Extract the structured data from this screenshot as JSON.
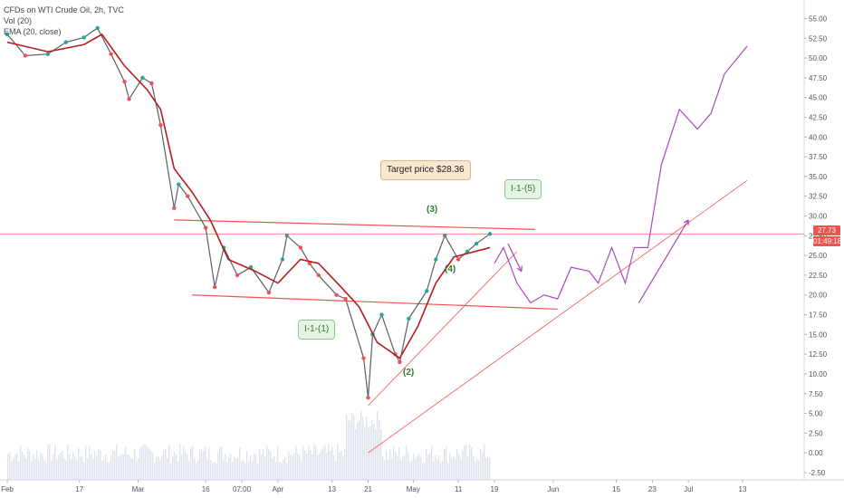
{
  "header": {
    "symbol_line": "CFDs on WTI Crude Oil, 2h, TVC",
    "vol_line": "Vol (20)",
    "ma_line": "EMA (20, close)"
  },
  "last_price": {
    "value": "27.73",
    "countdown": "01:49:18",
    "color": "#ef5350"
  },
  "annotations": {
    "target": "Target price $28.36",
    "wave_i1_1": "I-1-(1)",
    "wave_i1_5": "I-1-(5)",
    "w2": "(2)",
    "w3": "(3)",
    "w4": "(4)"
  },
  "colors": {
    "candle_up": "#26a69a",
    "candle_down": "#ef5350",
    "ema": "#b71c1c",
    "trendline": "#ef5350",
    "projection": "#ab47bc",
    "volume": "#e0e3eb"
  },
  "chart_data": {
    "type": "line",
    "title": "CFDs on WTI Crude Oil, 2h, TVC",
    "x_ticks": [
      "Feb",
      "17",
      "Mar",
      "16",
      "07:00",
      "Apr",
      "13",
      "21",
      "May",
      "11",
      "19",
      "Jun",
      "15",
      "23",
      "Jul",
      "13"
    ],
    "y_ticks": [
      "55.00",
      "52.50",
      "50.00",
      "47.50",
      "45.00",
      "42.50",
      "40.00",
      "37.50",
      "35.00",
      "32.50",
      "30.00",
      "27.50",
      "25.00",
      "22.50",
      "20.00",
      "17.50",
      "15.00",
      "12.50",
      "10.00",
      "7.50",
      "5.00",
      "2.50",
      "0.00",
      "-2.50"
    ],
    "ylim": [
      -2.5,
      56.2
    ],
    "price_series": {
      "name": "Close",
      "points": [
        [
          "Feb 01",
          53.0
        ],
        [
          "Feb 05",
          50.3
        ],
        [
          "Feb 10",
          50.5
        ],
        [
          "Feb 14",
          52.0
        ],
        [
          "Feb 18",
          52.6
        ],
        [
          "Feb 21",
          53.8
        ],
        [
          "Feb 24",
          50.5
        ],
        [
          "Feb 27",
          47.0
        ],
        [
          "Feb 28",
          44.8
        ],
        [
          "Mar 02",
          47.5
        ],
        [
          "Mar 04",
          46.8
        ],
        [
          "Mar 06",
          41.5
        ],
        [
          "Mar 09",
          31.0
        ],
        [
          "Mar 10",
          34.0
        ],
        [
          "Mar 12",
          32.5
        ],
        [
          "Mar 16",
          28.5
        ],
        [
          "Mar 18",
          21.0
        ],
        [
          "Mar 20",
          26.0
        ],
        [
          "Mar 23",
          22.5
        ],
        [
          "Mar 26",
          23.5
        ],
        [
          "Mar 30",
          20.3
        ],
        [
          "Apr 02",
          24.5
        ],
        [
          "Apr 03",
          27.5
        ],
        [
          "Apr 06",
          26.0
        ],
        [
          "Apr 08",
          24.0
        ],
        [
          "Apr 10",
          22.5
        ],
        [
          "Apr 14",
          20.0
        ],
        [
          "Apr 16",
          19.5
        ],
        [
          "Apr 20",
          12.0
        ],
        [
          "Apr 21",
          7.0
        ],
        [
          "Apr 22",
          15.0
        ],
        [
          "Apr 24",
          17.5
        ],
        [
          "Apr 27",
          12.5
        ],
        [
          "Apr 28",
          11.5
        ],
        [
          "Apr 30",
          17.0
        ],
        [
          "May 04",
          20.5
        ],
        [
          "May 06",
          24.5
        ],
        [
          "May 08",
          27.5
        ],
        [
          "May 11",
          24.5
        ],
        [
          "May 13",
          25.5
        ],
        [
          "May 15",
          26.5
        ],
        [
          "May 18",
          27.73
        ]
      ]
    },
    "ema_series": {
      "name": "EMA (20, close)",
      "points": [
        [
          "Feb 01",
          52.0
        ],
        [
          "Feb 10",
          50.8
        ],
        [
          "Feb 18",
          51.7
        ],
        [
          "Feb 22",
          53.0
        ],
        [
          "Feb 27",
          49.0
        ],
        [
          "Mar 03",
          46.0
        ],
        [
          "Mar 06",
          43.5
        ],
        [
          "Mar 09",
          36.0
        ],
        [
          "Mar 13",
          33.0
        ],
        [
          "Mar 17",
          29.5
        ],
        [
          "Mar 21",
          24.5
        ],
        [
          "Mar 27",
          23.0
        ],
        [
          "Apr 01",
          21.5
        ],
        [
          "Apr 06",
          24.5
        ],
        [
          "Apr 10",
          24.0
        ],
        [
          "Apr 15",
          21.0
        ],
        [
          "Apr 19",
          18.5
        ],
        [
          "Apr 23",
          14.0
        ],
        [
          "Apr 28",
          12.0
        ],
        [
          "May 02",
          16.0
        ],
        [
          "May 06",
          21.5
        ],
        [
          "May 10",
          24.8
        ],
        [
          "May 18",
          26.0
        ]
      ]
    },
    "trendlines": [
      {
        "name": "upper",
        "from": [
          "Mar 09",
          29.5
        ],
        "to": [
          "May 28",
          28.3
        ]
      },
      {
        "name": "lower",
        "from": [
          "Mar 13",
          20.0
        ],
        "to": [
          "Jun 02",
          18.2
        ]
      },
      {
        "name": "support1",
        "from": [
          "Apr 21",
          6.0
        ],
        "to": [
          "May 24",
          25.5
        ]
      },
      {
        "name": "support2",
        "from": [
          "Apr 21",
          0.0
        ],
        "to": [
          "Jul 14",
          34.5
        ]
      }
    ],
    "projection": {
      "name": "projection",
      "points": [
        [
          "May 19",
          24.0
        ],
        [
          "May 21",
          26.0
        ],
        [
          "May 24",
          21.5
        ],
        [
          "May 27",
          19.0
        ],
        [
          "May 30",
          20.0
        ],
        [
          "Jun 02",
          19.5
        ],
        [
          "Jun 05",
          23.5
        ],
        [
          "Jun 09",
          23.0
        ],
        [
          "Jun 11",
          21.5
        ],
        [
          "Jun 14",
          26.0
        ],
        [
          "Jun 17",
          21.5
        ],
        [
          "Jun 19",
          26.0
        ],
        [
          "Jun 22",
          26.0
        ],
        [
          "Jun 25",
          36.5
        ],
        [
          "Jun 29",
          43.5
        ],
        [
          "Jul 03",
          41.0
        ],
        [
          "Jul 06",
          43.0
        ],
        [
          "Jul 09",
          48.0
        ],
        [
          "Jul 14",
          51.5
        ]
      ],
      "arrows": [
        {
          "from": [
            "May 22",
            26.5
          ],
          "to": [
            "May 25",
            23.0
          ]
        },
        {
          "from": [
            "Jun 20",
            19.0
          ],
          "to": [
            "Jul 01",
            29.5
          ]
        }
      ]
    },
    "volume_series": {
      "name": "Vol (20)",
      "ylim": [
        0,
        100
      ]
    },
    "grid": false,
    "legend": "top-left"
  }
}
